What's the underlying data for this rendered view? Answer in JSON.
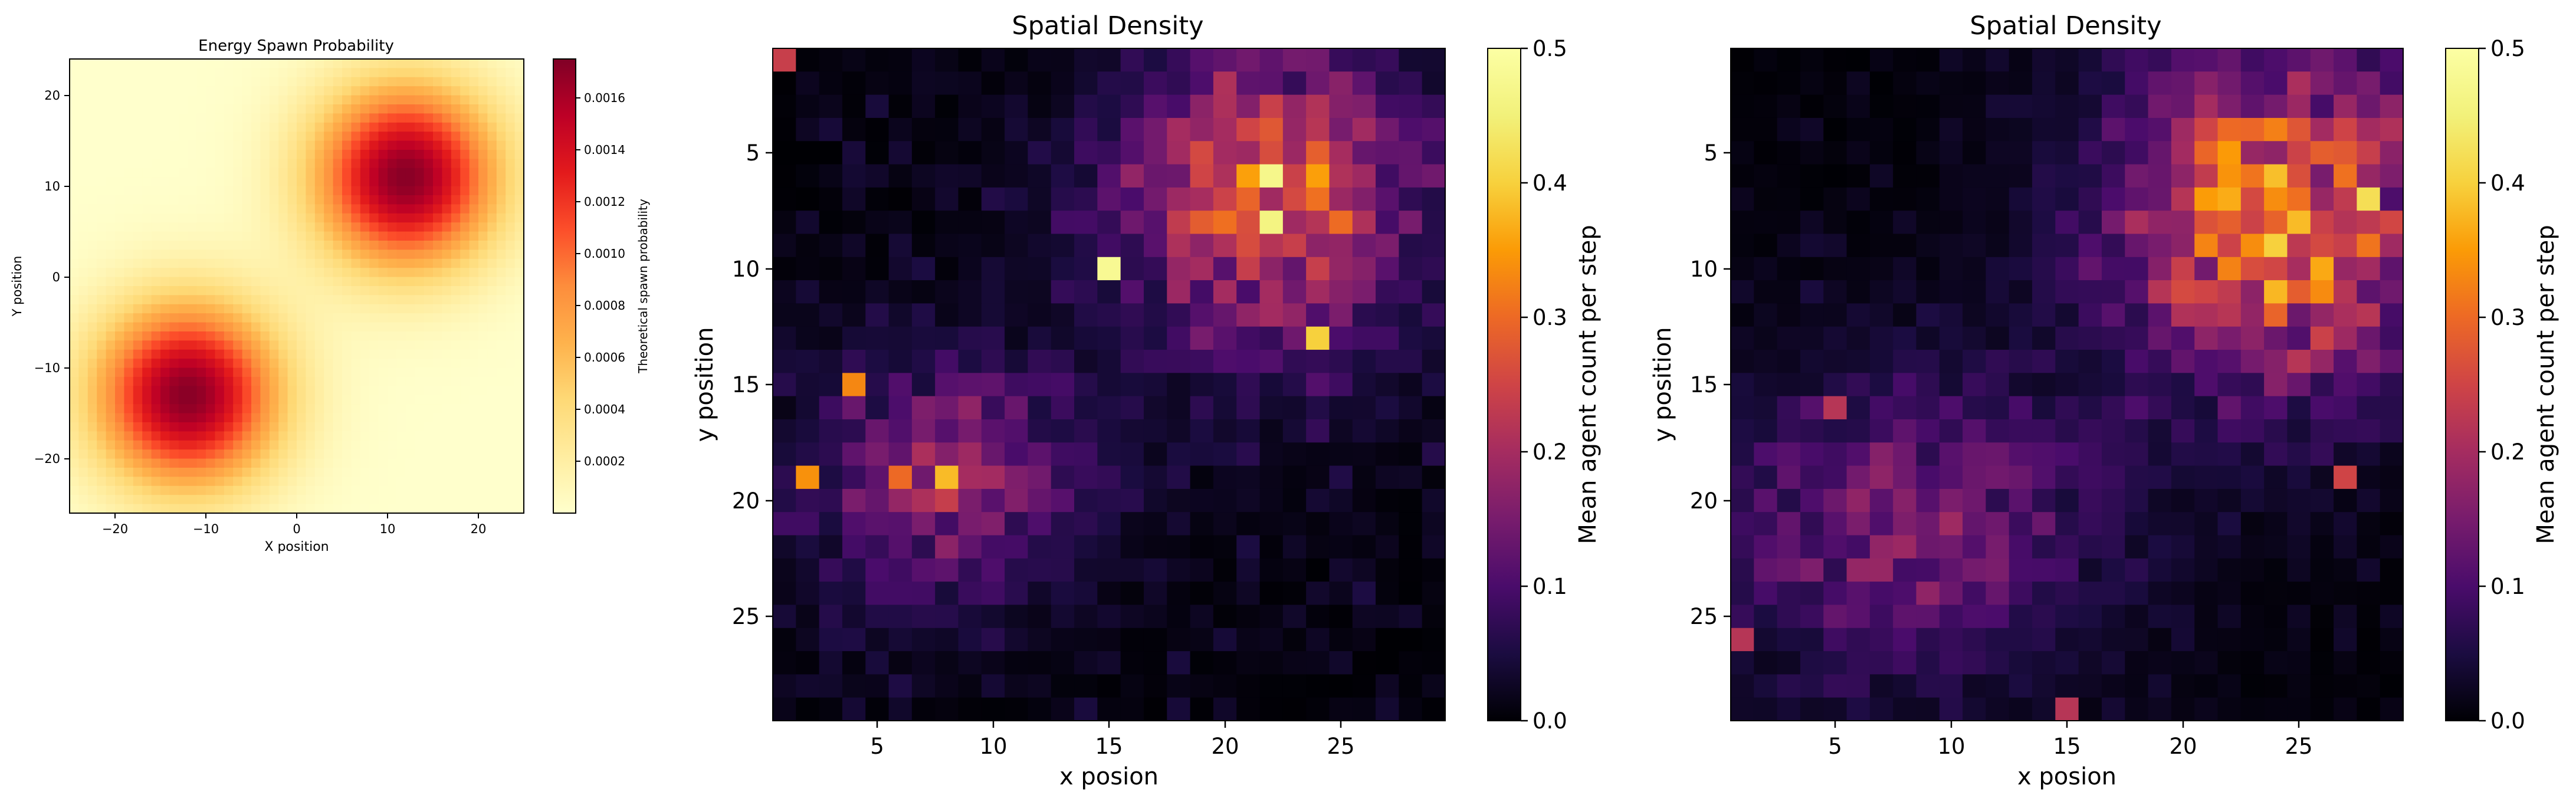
{
  "chart_data": [
    {
      "type": "heatmap",
      "title": "Energy Spawn Probability",
      "xlabel": "X position",
      "ylabel": "Y position",
      "xlim": [
        -25,
        25
      ],
      "ylim": [
        -25,
        25
      ],
      "xticks": [
        "−20",
        "−10",
        "0",
        "10",
        "20"
      ],
      "yticks": [
        "20",
        "10",
        "0",
        "−10",
        "−20"
      ],
      "colormap": "YlOrRd",
      "grid_size": 50,
      "peaks": [
        {
          "x": 12,
          "y": 12
        },
        {
          "x": -12,
          "y": -12
        }
      ],
      "peak_sigma": 7,
      "colorbar": {
        "label": "Theoretical spawn probability",
        "range": [
          0,
          0.00175
        ],
        "ticks": [
          "0.0002",
          "0.0004",
          "0.0006",
          "0.0008",
          "0.0010",
          "0.0012",
          "0.0014",
          "0.0016"
        ]
      }
    },
    {
      "type": "heatmap",
      "title": "Spatial Density",
      "xlabel": "x posion",
      "ylabel": "y position",
      "xticks": [
        "5",
        "10",
        "15",
        "20",
        "25"
      ],
      "yticks": [
        "5",
        "10",
        "15",
        "20",
        "25"
      ],
      "colormap": "inferno",
      "grid_size": 29,
      "colorbar": {
        "label": "Mean agent count per step",
        "range": [
          0,
          0.5
        ],
        "ticks": [
          "0.0",
          "0.1",
          "0.2",
          "0.3",
          "0.4",
          "0.5"
        ]
      },
      "seed": 17,
      "regions": [
        {
          "x": 22,
          "y": 7,
          "rx": 4.5,
          "ry": 4.5,
          "amp": 0.25
        },
        {
          "x": 8,
          "y": 19,
          "rx": 4,
          "ry": 3.5,
          "amp": 0.16
        }
      ],
      "noise": 0.06,
      "hotspots": [
        {
          "x": 1,
          "y": 1,
          "v": 0.24
        },
        {
          "x": 15,
          "y": 10,
          "v": 0.48
        },
        {
          "x": 22,
          "y": 6,
          "v": 0.47
        },
        {
          "x": 22,
          "y": 8,
          "v": 0.46
        },
        {
          "x": 24,
          "y": 13,
          "v": 0.4
        },
        {
          "x": 8,
          "y": 19,
          "v": 0.38
        },
        {
          "x": 2,
          "y": 19,
          "v": 0.34
        },
        {
          "x": 4,
          "y": 15,
          "v": 0.33
        },
        {
          "x": 6,
          "y": 19,
          "v": 0.3
        }
      ]
    },
    {
      "type": "heatmap",
      "title": "Spatial Density",
      "xlabel": "x posion",
      "ylabel": "y position",
      "xticks": [
        "5",
        "10",
        "15",
        "20",
        "25"
      ],
      "yticks": [
        "5",
        "10",
        "15",
        "20",
        "25"
      ],
      "colormap": "inferno",
      "grid_size": 29,
      "colorbar": {
        "label": "Mean agent count per step",
        "range": [
          0,
          0.5
        ],
        "ticks": [
          "0.0",
          "0.1",
          "0.2",
          "0.3",
          "0.4",
          "0.5"
        ]
      },
      "seed": 91,
      "regions": [
        {
          "x": 24,
          "y": 8,
          "rx": 5,
          "ry": 5,
          "amp": 0.3
        },
        {
          "x": 8,
          "y": 21,
          "rx": 6,
          "ry": 4.5,
          "amp": 0.14
        }
      ],
      "noise": 0.035,
      "hotspots": [
        {
          "x": 24,
          "y": 9,
          "v": 0.4
        },
        {
          "x": 25,
          "y": 8,
          "v": 0.38
        },
        {
          "x": 28,
          "y": 7,
          "v": 0.42
        },
        {
          "x": 27,
          "y": 19,
          "v": 0.25
        },
        {
          "x": 5,
          "y": 16,
          "v": 0.22
        },
        {
          "x": 1,
          "y": 26,
          "v": 0.22
        },
        {
          "x": 15,
          "y": 29,
          "v": 0.22
        }
      ]
    }
  ]
}
